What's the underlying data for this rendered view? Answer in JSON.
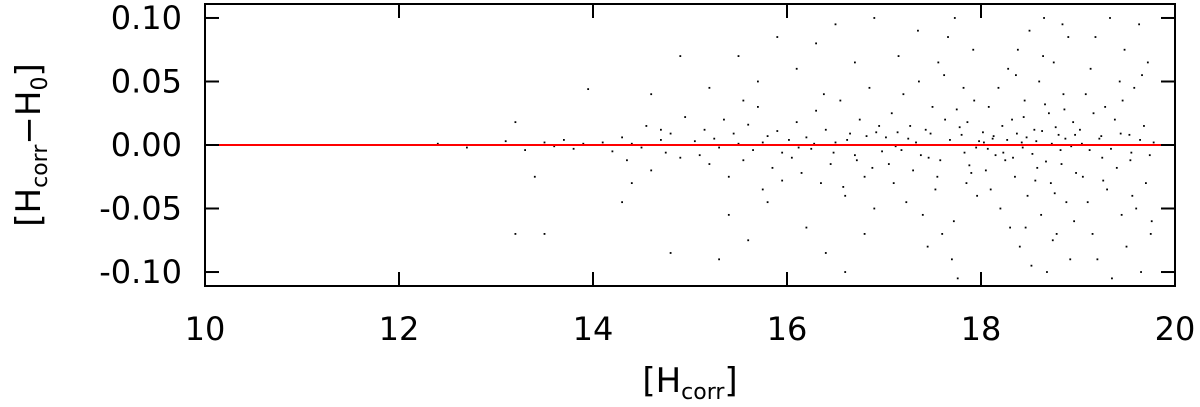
{
  "chart_data": {
    "type": "scatter",
    "xlabel": [
      "[H",
      "corr",
      "]"
    ],
    "ylabel": [
      "[H",
      "corr",
      "−H",
      "0",
      "]"
    ],
    "xlim": [
      10,
      20
    ],
    "xticks": [
      10,
      12,
      14,
      16,
      18,
      20
    ],
    "ylim": [
      -0.111,
      0.111
    ],
    "yticks": [
      {
        "value": -0.1,
        "label": "-0.10"
      },
      {
        "value": -0.05,
        "label": "-0.05"
      },
      {
        "value": 0,
        "label": "0.00"
      },
      {
        "value": 0.05,
        "label": "0.05"
      },
      {
        "value": 0.1,
        "label": "0.10"
      }
    ],
    "hline": {
      "value": 0,
      "color": "#ff0000"
    },
    "series": [
      {
        "color": "#000000",
        "x": [
          12.4,
          12.7,
          12.9,
          13.1,
          13.2,
          13.3,
          13.4,
          13.5,
          13.6,
          13.7,
          13.8,
          13.9,
          13.95,
          13.2,
          13.5,
          14.1,
          14.2,
          14.3,
          14.35,
          14.4,
          14.5,
          14.55,
          14.6,
          14.7,
          14.75,
          14.8,
          14.85,
          14.9,
          14.95,
          14.3,
          14.6,
          14.8,
          14.9,
          14.4,
          14.7,
          15.05,
          15.1,
          15.15,
          15.2,
          15.25,
          15.3,
          15.35,
          15.4,
          15.45,
          15.5,
          15.55,
          15.6,
          15.65,
          15.7,
          15.75,
          15.8,
          15.85,
          15.9,
          15.95,
          15.2,
          15.4,
          15.5,
          15.6,
          15.7,
          15.8,
          15.9,
          15.3,
          15.55,
          15.75,
          15.95,
          16.02,
          16.05,
          16.1,
          16.15,
          16.2,
          16.25,
          16.3,
          16.35,
          16.4,
          16.45,
          16.5,
          16.55,
          16.6,
          16.65,
          16.7,
          16.75,
          16.8,
          16.85,
          16.9,
          16.95,
          16.1,
          16.2,
          16.3,
          16.4,
          16.5,
          16.6,
          16.7,
          16.8,
          16.9,
          16.98,
          16.12,
          16.28,
          16.48,
          16.62,
          16.72,
          16.82,
          16.92,
          16.38,
          16.58,
          16.88,
          17.02,
          17.05,
          17.08,
          17.1,
          17.14,
          17.18,
          17.2,
          17.23,
          17.27,
          17.3,
          17.33,
          17.36,
          17.4,
          17.43,
          17.46,
          17.5,
          17.53,
          17.56,
          17.6,
          17.63,
          17.66,
          17.7,
          17.73,
          17.76,
          17.8,
          17.83,
          17.86,
          17.9,
          17.93,
          17.96,
          17.98,
          17.12,
          17.25,
          17.38,
          17.48,
          17.58,
          17.68,
          17.78,
          17.88,
          17.92,
          17.45,
          17.35,
          17.62,
          17.72,
          17.82,
          17.85,
          17.15,
          17.55,
          17.75,
          17.95,
          18.02,
          18.05,
          18.08,
          18.1,
          18.12,
          18.15,
          18.18,
          18.2,
          18.22,
          18.25,
          18.28,
          18.3,
          18.32,
          18.35,
          18.38,
          18.4,
          18.42,
          18.45,
          18.48,
          18.5,
          18.52,
          18.55,
          18.58,
          18.6,
          18.62,
          18.65,
          18.68,
          18.7,
          18.72,
          18.75,
          18.78,
          18.8,
          18.82,
          18.85,
          18.88,
          18.9,
          18.92,
          18.95,
          18.98,
          18.03,
          18.07,
          18.13,
          18.17,
          18.23,
          18.27,
          18.33,
          18.37,
          18.43,
          18.47,
          18.53,
          18.57,
          18.63,
          18.67,
          18.73,
          18.77,
          18.83,
          18.87,
          18.93,
          18.97,
          18.44,
          18.56,
          18.66,
          18.76,
          18.86,
          18.96,
          18.36,
          18.46,
          18.64,
          18.74,
          18.84,
          19.02,
          19.05,
          19.08,
          19.1,
          19.13,
          19.15,
          19.18,
          19.2,
          19.22,
          19.25,
          19.28,
          19.3,
          19.33,
          19.35,
          19.38,
          19.4,
          19.43,
          19.45,
          19.48,
          19.5,
          19.53,
          19.55,
          19.58,
          19.6,
          19.63,
          19.65,
          19.68,
          19.7,
          19.72,
          19.75,
          19.78,
          19.04,
          19.12,
          19.24,
          19.34,
          19.44,
          19.54,
          19.64,
          19.74,
          19.16,
          19.26,
          19.46,
          19.56,
          19.66,
          19.76
        ],
        "values": [
          0.001,
          -0.002,
          0,
          0.003,
          0.018,
          -0.004,
          -0.025,
          0.002,
          -0.001,
          0.004,
          -0.003,
          0.001,
          0.044,
          -0.07,
          -0.07,
          0.002,
          -0.005,
          0.006,
          -0.012,
          0.001,
          -0.002,
          0.015,
          -0.02,
          0.004,
          -0.006,
          0.009,
          0,
          -0.01,
          0.022,
          -0.045,
          0.04,
          -0.085,
          0.07,
          -0.03,
          0.012,
          0.003,
          -0.008,
          0.012,
          -0.015,
          0.005,
          -0.002,
          0.02,
          -0.025,
          0.009,
          0.001,
          -0.012,
          0.016,
          -0.004,
          0.03,
          -0.035,
          0.007,
          -0.018,
          0.011,
          -0.006,
          0.045,
          -0.055,
          0.07,
          -0.075,
          0.05,
          -0.045,
          0.085,
          -0.09,
          0.035,
          0.002,
          -0.028,
          0.004,
          -0.01,
          0.018,
          -0.022,
          0.006,
          -0.003,
          0.027,
          -0.03,
          0.012,
          -0.015,
          0.002,
          0.035,
          -0.04,
          0.009,
          -0.008,
          0.02,
          -0.025,
          0.045,
          -0.05,
          0.015,
          0.06,
          -0.065,
          0.08,
          -0.085,
          0.095,
          -0.1,
          0.065,
          -0.07,
          0.1,
          -0.005,
          -0.002,
          0.001,
          -0.006,
          0.004,
          -0.012,
          0.007,
          0.01,
          0.04,
          -0.033,
          -0.018,
          0.006,
          -0.015,
          0.025,
          -0.03,
          0.01,
          -0.004,
          0.04,
          -0.045,
          0.015,
          -0.02,
          0.002,
          0.05,
          -0.055,
          0.012,
          -0.01,
          0.03,
          -0.035,
          0.065,
          -0.07,
          0.02,
          0.085,
          -0.09,
          0.1,
          -0.105,
          0.008,
          -0.006,
          0.018,
          -0.022,
          0.035,
          -0.04,
          0.003,
          -0.001,
          0.005,
          -0.008,
          0.009,
          -0.012,
          0.004,
          0.014,
          -0.016,
          0.075,
          -0.08,
          0.09,
          0.055,
          -0.06,
          0.045,
          -0.03,
          0.07,
          -0.025,
          0.028,
          -0.002,
          0.01,
          -0.02,
          0.03,
          -0.035,
          0.005,
          -0.008,
          0.045,
          -0.05,
          0.015,
          -0.012,
          0.06,
          -0.065,
          0.02,
          -0.025,
          0.075,
          -0.08,
          0.002,
          0.035,
          -0.04,
          0.09,
          -0.095,
          0.012,
          -0.018,
          0.05,
          -0.055,
          0.1,
          -0.1,
          0.025,
          -0.03,
          0.065,
          -0.07,
          0.008,
          -0.004,
          0.04,
          -0.045,
          0.085,
          -0.09,
          0.018,
          -0.022,
          0.002,
          -0.003,
          0.007,
          0,
          -0.006,
          0.004,
          -0.01,
          0.009,
          -0.002,
          0.006,
          -0.007,
          0.003,
          0.011,
          -0.013,
          0.001,
          0.014,
          -0.015,
          0.005,
          -0.001,
          0.008,
          0.022,
          -0.028,
          0.032,
          -0.038,
          0.028,
          -0.06,
          0.055,
          -0.065,
          0.07,
          -0.075,
          0.095,
          0.012,
          -0.025,
          0.04,
          -0.045,
          0.06,
          -0.07,
          0.085,
          -0.09,
          0.005,
          -0.01,
          0.03,
          -0.035,
          0.1,
          -0.105,
          0.02,
          -0.018,
          0.05,
          -0.055,
          0.075,
          -0.08,
          0.008,
          -0.006,
          0.045,
          -0.05,
          0.095,
          -0.1,
          0.015,
          -0.03,
          0.065,
          -0.07,
          0.002,
          0.001,
          -0.004,
          0.007,
          -0.003,
          0.009,
          -0.012,
          0.004,
          -0.008,
          0.025,
          -0.028,
          0.035,
          -0.04,
          0.055,
          -0.06
        ]
      }
    ]
  }
}
